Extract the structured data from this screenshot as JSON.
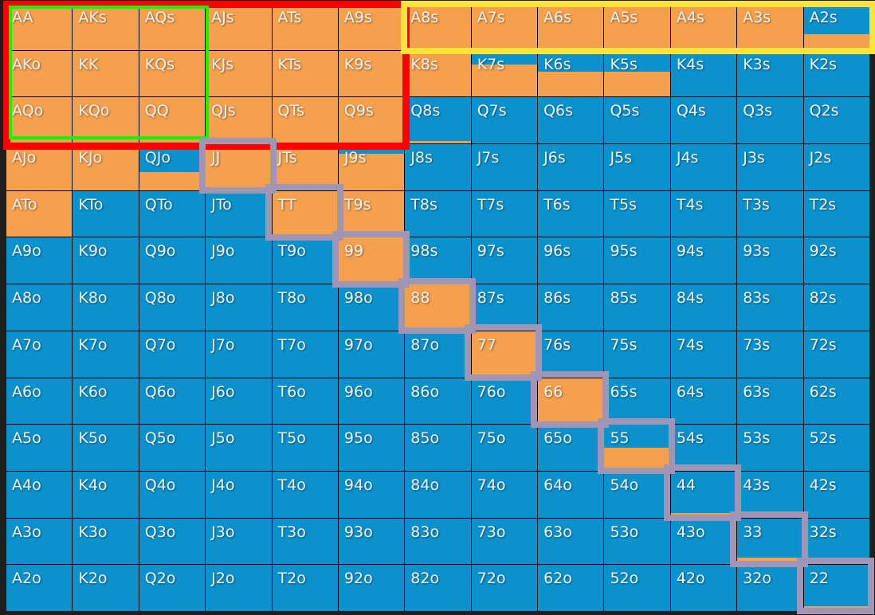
{
  "colors": {
    "raise": "#f4a04d",
    "fold": "#0b91cc",
    "red_box": "#ff0000",
    "green_box": "#00ff00",
    "yellow_box": "#ffe33a",
    "pair_box": "#a095b4"
  },
  "grid": [
    [
      [
        "AA",
        1
      ],
      [
        "AKs",
        1
      ],
      [
        "AQs",
        1
      ],
      [
        "AJs",
        1
      ],
      [
        "ATs",
        1
      ],
      [
        "A9s",
        1
      ],
      [
        "A8s",
        1
      ],
      [
        "A7s",
        1
      ],
      [
        "A6s",
        1
      ],
      [
        "A5s",
        1
      ],
      [
        "A4s",
        1
      ],
      [
        "A3s",
        1
      ],
      [
        "A2s",
        0.35
      ]
    ],
    [
      [
        "AKo",
        1
      ],
      [
        "KK",
        1
      ],
      [
        "KQs",
        1
      ],
      [
        "KJs",
        1
      ],
      [
        "KTs",
        1
      ],
      [
        "K9s",
        1
      ],
      [
        "K8s",
        1
      ],
      [
        "K7s",
        0.7
      ],
      [
        "K6s",
        0.55
      ],
      [
        "K5s",
        0.55
      ],
      [
        "K4s",
        0
      ],
      [
        "K3s",
        0
      ],
      [
        "K2s",
        0
      ]
    ],
    [
      [
        "AQo",
        1
      ],
      [
        "KQo",
        1
      ],
      [
        "QQ",
        1
      ],
      [
        "QJs",
        1
      ],
      [
        "QTs",
        1
      ],
      [
        "Q9s",
        1
      ],
      [
        "Q8s",
        0.06
      ],
      [
        "Q7s",
        0
      ],
      [
        "Q6s",
        0
      ],
      [
        "Q5s",
        0
      ],
      [
        "Q4s",
        0
      ],
      [
        "Q3s",
        0
      ],
      [
        "Q2s",
        0
      ]
    ],
    [
      [
        "AJo",
        1
      ],
      [
        "KJo",
        1
      ],
      [
        "QJo",
        0.4
      ],
      [
        "JJ",
        1
      ],
      [
        "JTs",
        1
      ],
      [
        "J9s",
        0.8
      ],
      [
        "J8s",
        0
      ],
      [
        "J7s",
        0
      ],
      [
        "J6s",
        0
      ],
      [
        "J5s",
        0
      ],
      [
        "J4s",
        0
      ],
      [
        "J3s",
        0
      ],
      [
        "J2s",
        0
      ]
    ],
    [
      [
        "ATo",
        1
      ],
      [
        "KTo",
        0
      ],
      [
        "QTo",
        0
      ],
      [
        "JTo",
        0
      ],
      [
        "TT",
        1
      ],
      [
        "T9s",
        1
      ],
      [
        "T8s",
        0
      ],
      [
        "T7s",
        0
      ],
      [
        "T6s",
        0
      ],
      [
        "T5s",
        0
      ],
      [
        "T4s",
        0
      ],
      [
        "T3s",
        0
      ],
      [
        "T2s",
        0
      ]
    ],
    [
      [
        "A9o",
        0
      ],
      [
        "K9o",
        0
      ],
      [
        "Q9o",
        0
      ],
      [
        "J9o",
        0
      ],
      [
        "T9o",
        0
      ],
      [
        "99",
        1
      ],
      [
        "98s",
        0.05
      ],
      [
        "97s",
        0
      ],
      [
        "96s",
        0
      ],
      [
        "95s",
        0
      ],
      [
        "94s",
        0
      ],
      [
        "93s",
        0
      ],
      [
        "92s",
        0
      ]
    ],
    [
      [
        "A8o",
        0
      ],
      [
        "K8o",
        0
      ],
      [
        "Q8o",
        0
      ],
      [
        "J8o",
        0
      ],
      [
        "T8o",
        0
      ],
      [
        "98o",
        0
      ],
      [
        "88",
        1
      ],
      [
        "87s",
        0
      ],
      [
        "86s",
        0
      ],
      [
        "85s",
        0
      ],
      [
        "84s",
        0
      ],
      [
        "83s",
        0
      ],
      [
        "82s",
        0
      ]
    ],
    [
      [
        "A7o",
        0
      ],
      [
        "K7o",
        0
      ],
      [
        "Q7o",
        0
      ],
      [
        "J7o",
        0
      ],
      [
        "T7o",
        0
      ],
      [
        "97o",
        0
      ],
      [
        "87o",
        0
      ],
      [
        "77",
        1
      ],
      [
        "76s",
        0
      ],
      [
        "75s",
        0
      ],
      [
        "74s",
        0
      ],
      [
        "73s",
        0
      ],
      [
        "72s",
        0
      ]
    ],
    [
      [
        "A6o",
        0
      ],
      [
        "K6o",
        0
      ],
      [
        "Q6o",
        0
      ],
      [
        "J6o",
        0
      ],
      [
        "T6o",
        0
      ],
      [
        "96o",
        0
      ],
      [
        "86o",
        0
      ],
      [
        "76o",
        0
      ],
      [
        "66",
        1
      ],
      [
        "65s",
        0.05
      ],
      [
        "64s",
        0
      ],
      [
        "63s",
        0
      ],
      [
        "62s",
        0
      ]
    ],
    [
      [
        "A5o",
        0
      ],
      [
        "K5o",
        0
      ],
      [
        "Q5o",
        0
      ],
      [
        "J5o",
        0
      ],
      [
        "T5o",
        0
      ],
      [
        "95o",
        0
      ],
      [
        "85o",
        0
      ],
      [
        "75o",
        0
      ],
      [
        "65o",
        0
      ],
      [
        "55",
        0.5
      ],
      [
        "54s",
        0
      ],
      [
        "53s",
        0
      ],
      [
        "52s",
        0
      ]
    ],
    [
      [
        "A4o",
        0
      ],
      [
        "K4o",
        0
      ],
      [
        "Q4o",
        0
      ],
      [
        "J4o",
        0
      ],
      [
        "T4o",
        0
      ],
      [
        "94o",
        0
      ],
      [
        "84o",
        0
      ],
      [
        "74o",
        0
      ],
      [
        "64o",
        0
      ],
      [
        "54o",
        0
      ],
      [
        "44",
        0.1
      ],
      [
        "43s",
        0
      ],
      [
        "42s",
        0
      ]
    ],
    [
      [
        "A3o",
        0
      ],
      [
        "K3o",
        0
      ],
      [
        "Q3o",
        0
      ],
      [
        "J3o",
        0
      ],
      [
        "T3o",
        0
      ],
      [
        "93o",
        0
      ],
      [
        "83o",
        0
      ],
      [
        "73o",
        0
      ],
      [
        "63o",
        0
      ],
      [
        "53o",
        0
      ],
      [
        "43o",
        0
      ],
      [
        "33",
        0.15
      ],
      [
        "32s",
        0
      ]
    ],
    [
      [
        "A2o",
        0
      ],
      [
        "K2o",
        0
      ],
      [
        "Q2o",
        0
      ],
      [
        "J2o",
        0
      ],
      [
        "T2o",
        0
      ],
      [
        "92o",
        0
      ],
      [
        "82o",
        0
      ],
      [
        "72o",
        0
      ],
      [
        "62o",
        0
      ],
      [
        "52o",
        0
      ],
      [
        "42o",
        0
      ],
      [
        "32o",
        0
      ],
      [
        "22",
        0.1
      ]
    ]
  ]
}
